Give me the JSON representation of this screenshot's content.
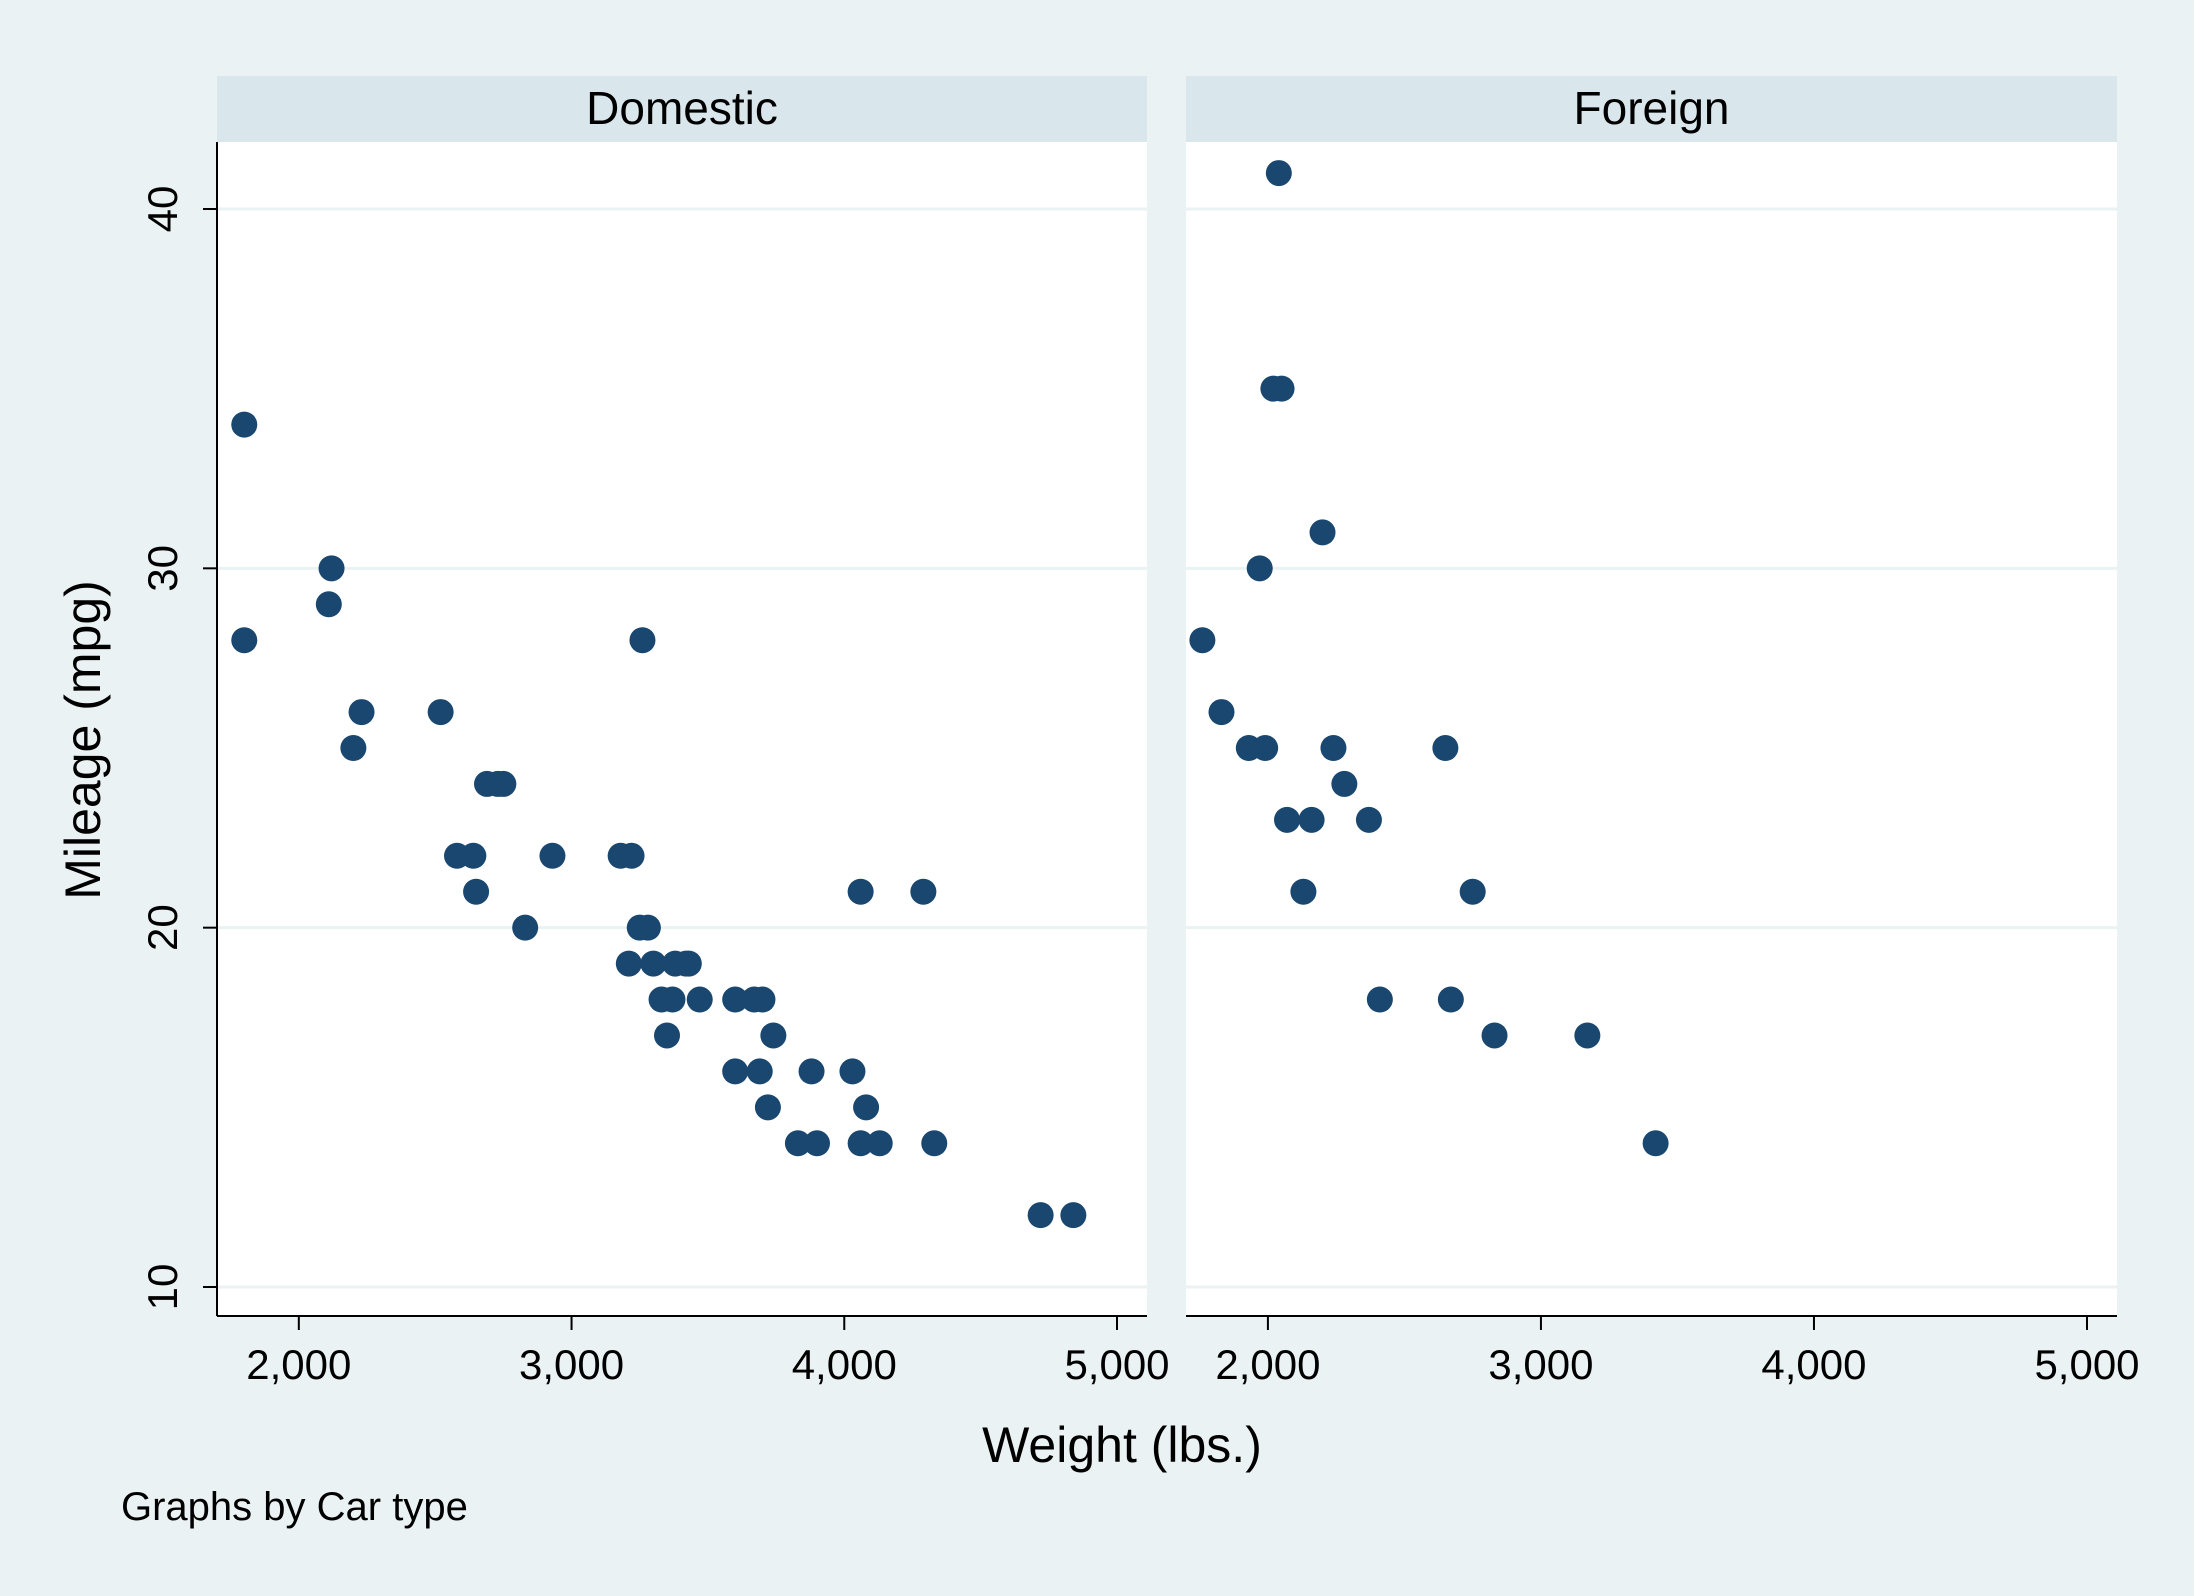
{
  "chart_data": {
    "type": "scatter",
    "layout": "two side-by-side panels sharing axes",
    "xlabel": "Weight (lbs.)",
    "ylabel": "Mileage (mpg)",
    "note": "Graphs by Car type",
    "xlim": [
      1700,
      5000
    ],
    "ylim": [
      9,
      42
    ],
    "xticks": [
      2000,
      3000,
      4000,
      5000
    ],
    "xtick_labels": [
      "2,000",
      "3,000",
      "4,000",
      "5,000"
    ],
    "yticks": [
      10,
      20,
      30,
      40
    ],
    "ytick_labels": [
      "10",
      "20",
      "30",
      "40"
    ],
    "grid": "horizontal",
    "colors": {
      "marker": "#1a476f",
      "background": "#eaf2f3",
      "panel": "#ffffff",
      "header": "#d9e6eb",
      "grid": "#eaf2f3"
    },
    "panels": [
      {
        "title": "Domestic",
        "points": [
          [
            1800,
            34
          ],
          [
            1800,
            28
          ],
          [
            2110,
            29
          ],
          [
            2120,
            30
          ],
          [
            2200,
            25
          ],
          [
            2230,
            26
          ],
          [
            2520,
            26
          ],
          [
            2580,
            22
          ],
          [
            2640,
            22
          ],
          [
            2650,
            21
          ],
          [
            2690,
            24
          ],
          [
            2730,
            24
          ],
          [
            2750,
            24
          ],
          [
            2830,
            20
          ],
          [
            2930,
            22
          ],
          [
            3180,
            22
          ],
          [
            3210,
            19
          ],
          [
            3220,
            22
          ],
          [
            3250,
            20
          ],
          [
            3260,
            28
          ],
          [
            3280,
            20
          ],
          [
            3300,
            19
          ],
          [
            3330,
            18
          ],
          [
            3350,
            17
          ],
          [
            3370,
            18
          ],
          [
            3380,
            19
          ],
          [
            3420,
            19
          ],
          [
            3430,
            19
          ],
          [
            3470,
            18
          ],
          [
            3600,
            18
          ],
          [
            3600,
            16
          ],
          [
            3670,
            18
          ],
          [
            3690,
            16
          ],
          [
            3700,
            18
          ],
          [
            3720,
            15
          ],
          [
            3740,
            17
          ],
          [
            3830,
            14
          ],
          [
            3880,
            16
          ],
          [
            3900,
            14
          ],
          [
            4030,
            16
          ],
          [
            4060,
            21
          ],
          [
            4060,
            14
          ],
          [
            4080,
            15
          ],
          [
            4130,
            14
          ],
          [
            4290,
            21
          ],
          [
            4330,
            14
          ],
          [
            4720,
            12
          ],
          [
            4840,
            12
          ]
        ]
      },
      {
        "title": "Foreign",
        "points": [
          [
            1760,
            28
          ],
          [
            1830,
            26
          ],
          [
            1930,
            25
          ],
          [
            1970,
            30
          ],
          [
            1990,
            25
          ],
          [
            2020,
            35
          ],
          [
            2040,
            41
          ],
          [
            2050,
            35
          ],
          [
            2070,
            23
          ],
          [
            2130,
            21
          ],
          [
            2160,
            23
          ],
          [
            2200,
            31
          ],
          [
            2240,
            25
          ],
          [
            2280,
            24
          ],
          [
            2370,
            23
          ],
          [
            2410,
            18
          ],
          [
            2650,
            25
          ],
          [
            2670,
            18
          ],
          [
            2750,
            21
          ],
          [
            2830,
            17
          ],
          [
            3170,
            17
          ],
          [
            3420,
            14
          ]
        ]
      }
    ]
  }
}
